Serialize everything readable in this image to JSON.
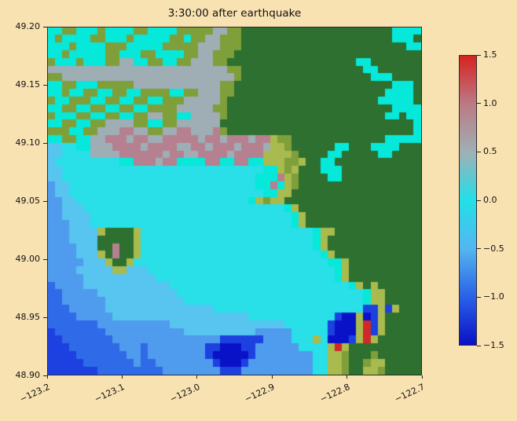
{
  "figure": {
    "background_color": "#f9e2b2"
  },
  "chart_data": {
    "type": "heatmap",
    "title": "3:30:00 after earthquake",
    "xlabel": "",
    "ylabel": "",
    "xlim": [
      -123.2,
      -122.7
    ],
    "ylim": [
      48.9,
      49.2
    ],
    "x_ticks": [
      "−123.2",
      "−123.1",
      "−123.0",
      "−122.9",
      "−122.8",
      "−122.7"
    ],
    "y_ticks": [
      "49.20",
      "49.15",
      "49.10",
      "49.05",
      "49.00",
      "48.95",
      "48.90"
    ],
    "colorbar": {
      "vmin": -1.5,
      "vmax": 1.5,
      "ticks": [
        "1.5",
        "1.0",
        "0.5",
        "0.0",
        "−0.5",
        "−1.0",
        "−1.5"
      ],
      "stops": [
        {
          "v": -1.5,
          "color": "#0a10c8"
        },
        {
          "v": -1.0,
          "color": "#2a62e6"
        },
        {
          "v": -0.5,
          "color": "#54b6f0"
        },
        {
          "v": 0.0,
          "color": "#23dfe8"
        },
        {
          "v": 0.5,
          "color": "#9fb0b6"
        },
        {
          "v": 1.0,
          "color": "#bb7a84"
        },
        {
          "v": 1.5,
          "color": "#d62320"
        }
      ]
    },
    "grid": {
      "ncols": 52,
      "nrows": 45,
      "palette": {
        "D": {
          "value": -1.4,
          "color": "#0a12c8",
          "kind": "water-deep-trough"
        },
        "E": {
          "value": -1.0,
          "color": "#1c41e0",
          "kind": "water-trough"
        },
        "B": {
          "value": -0.75,
          "color": "#2f6ae8",
          "kind": "water"
        },
        "b": {
          "value": -0.5,
          "color": "#4f9bee",
          "kind": "water"
        },
        "w": {
          "value": -0.25,
          "color": "#58c4f0",
          "kind": "water"
        },
        "c": {
          "value": 0.0,
          "color": "#29dfe8",
          "kind": "water-neutral"
        },
        "C": {
          "value": 0.1,
          "color": "#06e8da",
          "kind": "flooded-land"
        },
        "s": {
          "value": 0.5,
          "color": "#9fadb5",
          "kind": "river-high-water"
        },
        "m": {
          "value": 0.85,
          "color": "#b5808f",
          "kind": "flooded-urban"
        },
        "r": {
          "value": 1.35,
          "color": "#d02a28",
          "kind": "flooded-extreme"
        },
        "g": {
          "value": null,
          "color": "#2d7030",
          "kind": "land-forest"
        },
        "o": {
          "value": null,
          "color": "#7f9f3a",
          "kind": "land-low"
        },
        "y": {
          "value": null,
          "color": "#a9ba4e",
          "kind": "land-lowest"
        }
      },
      "rows": [
        "CCooCCCoCCCCooCCCCooooossoogggggggggggggggggggggCCCCggg",
        "CoCCCCooCCCoCCCCCooCoossooogggggggggggggggggggggCCCgggg",
        "CCCoCCCCoooCCCCCooooosssooogggggggggggggggggggggggCCggg",
        "CCoCCCCCooCCCooCCCCoossooogggggggggggggggggggggggggggg",
        "oCCCoCCCoossCCooCCoosssooggggggggggggggggggCCgggggggg",
        "sssssssssssssssssssssssssoogggggggggggggggggCCgggggggg",
        "oossssssssssssssssssssssssoggggggggggggggggggCCCggggg",
        "CCooCCCooooossssssssssssooggggggggggggggggggggggCCCggg",
        "CCoCCooCCooCCooooCCoosssoogggggggggggggggggggggCCCCggg",
        "oCCoooCCooCCooCCooosssssogggggggggggggggggggggCCCCCggg",
        "CCooCCooCCooCCoooosssssoogggggggggggggggggggggggCCCCCgg",
        "oCCCooCCooCCoossooCCssssoggggggggggggggggggggggCCgCCCgg",
        "CCooCCoossssooCCoossssssgggggggggggggggggggggggggggCCCgg",
        "oooCCoosssmmssoossmmsssmoggggggggggggggggggggggggggCCgg",
        "CCooCCssmmmsmmssmmmmmsmmsmmmsmmyoogggggggggggggCCCCCgg",
        "wwccCCsssmmmmsmmmmssmmsmmmsmmmsyyoggggggCCgggCCCCggg",
        "wwccccssssmmmmmmsmmssmmmmsmmmmyyyyoggggCCgggggCCgggg",
        "wcccccccccCCmmmsmmCCCCmmCCmmCCyyyooyggCCgggggggggggg",
        "wwccccccccccccccccccccccccccccCCyoygggCCCgggggggggggg",
        "wwcccccccccccccccccccccccccccCCCmyoggggCCgggggggggggg",
        "bwwccccccccccccccccccccccccccCCmCyogggggggggggggggggg",
        "bwwcccccccccccccccccccccccccccCCyygggggggggggggggggg",
        "bbwwccccccccccccccccccccccccCyoyygggggggggggggggggg",
        "bbwwwccccccccccccccccccccccccccccCygggggggggggggggggg",
        "bbwwwwccccccccccccccccccccccccccccCygggggggggggggggg",
        "bbbwwwccccccccccccccccccccccccccccCygggggggggggggggg",
        "bbbwwwwyggggyccccccccccccccccccccccccCyygggggggggggggg",
        "bbbwwwwgggggyccccccccccccccccccccccccCygggggggggggggg",
        "bbbbwwwggmggyccccccccccccccccccccccccCygggggggggggggg",
        "bbbbwwwygmggycccccccccccccccccccccccccCyggggggggggggg",
        "bbbbbwwwyggycccccccccccccccccccccccccccCCygggggggggggg",
        "bbbbwwwwwyywwwccccccccccccccccccccccccccCyggggggggggg",
        "bbbbbwwwwwwwwwwcccccccccccccccccccccccccCygggggggggggg",
        "BbbbbwwwwwwwwwwwwcccccccccccccccccccccccccCygygggggggg",
        "BBbbbbbwwwwwwwwwwwccccccccccccccccccccccccccCyyggggggg",
        "BBbbbbbbwwwwwwwwwwwcccccccccccccccccccccccccCyyggggggg",
        "BBBbbbbbwwwwwwwwwwwwwwwcccccccccccccccccccccEEyEygggggg",
        "BBBBbbbbbwwwwwwwwwwwwwwwwwwwccccccccccccEDDyDEygggggg",
        "BBBBBBBbbbbbbbbbbwwwwwwwwwwwwwwwwccccccEDDDyrEygggggg",
        "EBBBBBBBbbbbbbbbbbbwwwwwwwwwwbbbbbcccccEDDDyrEygggggggg",
        "EEBBBBBBBbbbbbbbbbbbbbbbEEEEEEbbbbcccycDDDEyryggggggg",
        "EEEBBBBBBBbbbBbbbbbbbbEEDDDEEbbbbbbccccyrygggggggggggg",
        "EEEEBBBBBBBbbBbbbbbbbbEDDDDDEbbbbbbbbccyyogggogggggggg",
        "EEEEEBBBBBBBbBBbbbbbbbbEDDDEbbbbbbbbbccyyoggoyygggggg",
        "EEEEEEEBBBBBBBBBbbbbbbbbEEEbbbbbbbbbbccyyoggyyogggggg"
      ]
    }
  }
}
